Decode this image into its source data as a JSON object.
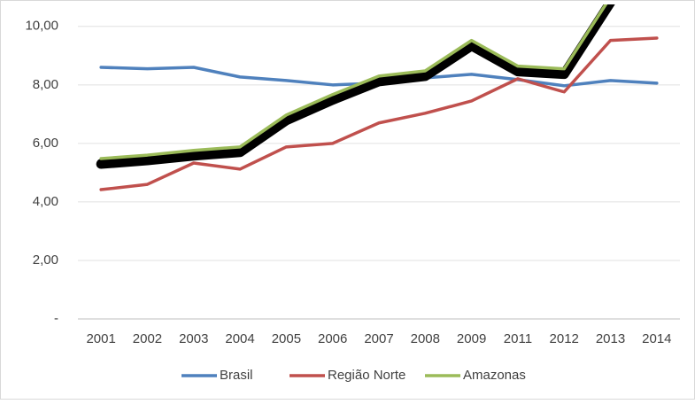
{
  "chart_data": {
    "type": "line",
    "categories": [
      "2001",
      "2002",
      "2003",
      "2004",
      "2005",
      "2006",
      "2007",
      "2008",
      "2009",
      "2011",
      "2012",
      "2013",
      "2014"
    ],
    "series": [
      {
        "name": "Brasil",
        "color": "#4f81bd",
        "values": [
          8.6,
          8.55,
          8.6,
          8.27,
          8.15,
          8.0,
          8.06,
          8.24,
          8.36,
          8.18,
          7.97,
          8.15,
          8.06
        ]
      },
      {
        "name": "Região Norte",
        "color": "#c0504d",
        "values": [
          4.42,
          4.6,
          5.33,
          5.12,
          5.88,
          6.0,
          6.7,
          7.03,
          7.45,
          8.21,
          7.76,
          9.52,
          9.6
        ]
      },
      {
        "name": "Amazonas",
        "color": "#9bbb59",
        "values": [
          5.48,
          5.6,
          5.76,
          5.88,
          6.97,
          7.67,
          8.3,
          8.48,
          9.52,
          8.64,
          8.55,
          11.0,
          null
        ]
      }
    ],
    "ylim": [
      0,
      10.75
    ],
    "yticks": [
      {
        "value": 0,
        "label": "-"
      },
      {
        "value": 2,
        "label": "2,00"
      },
      {
        "value": 4,
        "label": "4,00"
      },
      {
        "value": 6,
        "label": "6,00"
      },
      {
        "value": 8,
        "label": "8,00"
      },
      {
        "value": 10,
        "label": "10,00"
      }
    ],
    "grid": true,
    "legend": "bottom"
  }
}
